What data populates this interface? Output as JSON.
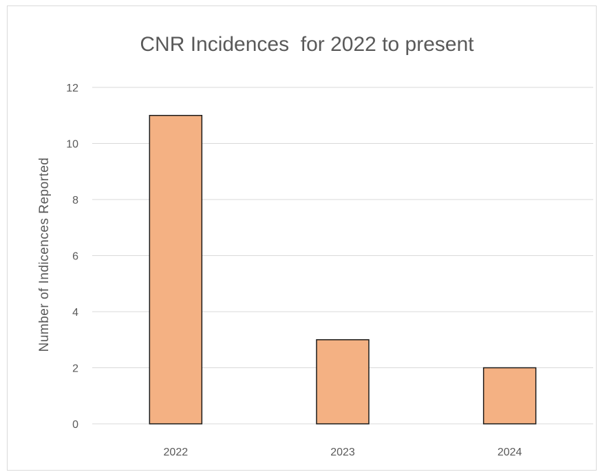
{
  "chart_data": {
    "type": "bar",
    "title": "CNR Incidences  for 2022 to present",
    "xlabel": "",
    "ylabel": "Number of Indicences Reported",
    "categories": [
      "2022",
      "2023",
      "2024"
    ],
    "values": [
      11,
      3,
      2
    ],
    "ylim": [
      0,
      12
    ],
    "yticks": [
      "0",
      "2",
      "4",
      "6",
      "8",
      "10",
      "12"
    ],
    "grid": true,
    "legend": "none",
    "colors": {
      "bar_fill": "#F4B183",
      "bar_stroke": "#1a1a1a",
      "gridline": "#d9d9d9",
      "text": "#595959",
      "frame": "#d9d9d9"
    }
  }
}
